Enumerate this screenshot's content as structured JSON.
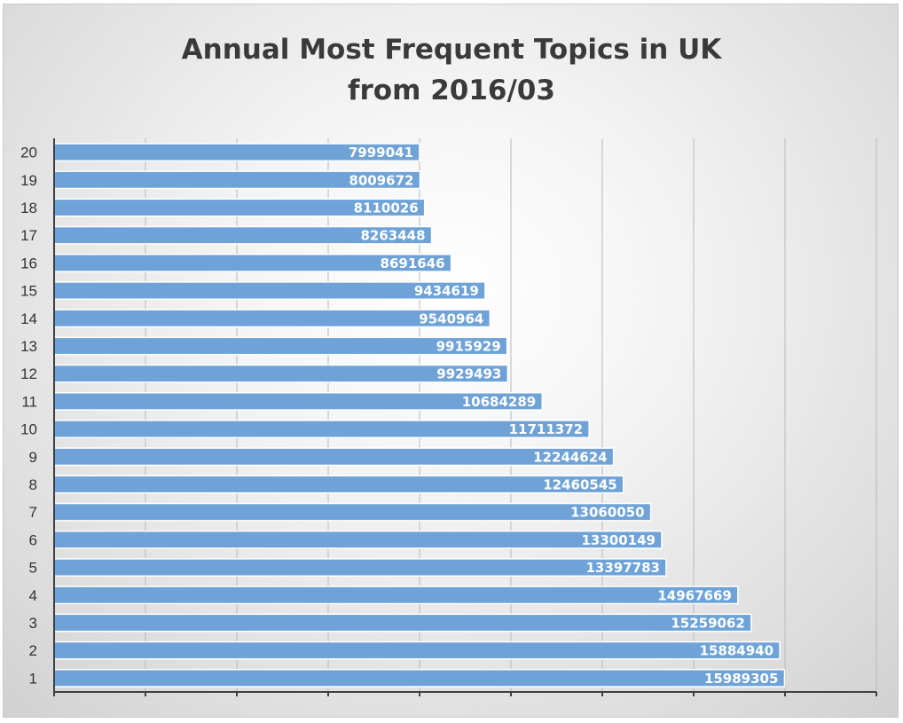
{
  "chart_data": {
    "type": "bar",
    "orientation": "horizontal",
    "title_lines": [
      "Annual Most Frequent Topics in UK",
      "from 2016/03"
    ],
    "categories": [
      "1",
      "2",
      "3",
      "4",
      "5",
      "6",
      "7",
      "8",
      "9",
      "10",
      "11",
      "12",
      "13",
      "14",
      "15",
      "16",
      "17",
      "18",
      "19",
      "20"
    ],
    "values": [
      15989305,
      15884940,
      15259062,
      14967669,
      13397783,
      13300149,
      13060050,
      12460545,
      12244624,
      11711372,
      10684289,
      9929493,
      9915929,
      9540964,
      9434619,
      8691646,
      8263448,
      8110026,
      8009672,
      7999041
    ],
    "xlim": [
      0,
      18000000
    ],
    "x_gridlines": true,
    "x_tick_labels_shown": false,
    "data_labels": "inside-end",
    "bar_color": "#6fa3d8",
    "bar_edge_color": "#ffffff",
    "axis_color": "#404040",
    "grid_color": "#b9b9b9",
    "xlabel": "",
    "ylabel": ""
  }
}
